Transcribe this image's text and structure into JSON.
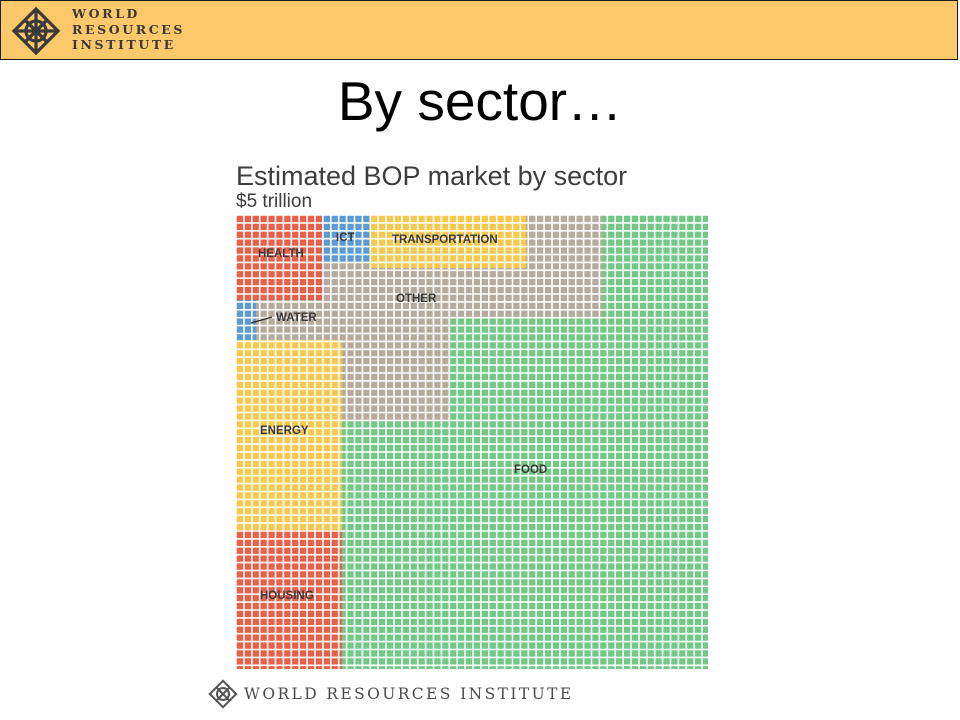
{
  "header": {
    "org_lines": [
      "WORLD",
      "RESOURCES",
      "INSTITUTE"
    ],
    "brand_color": "#fcc86a",
    "logo_icon": "wri-knot-icon"
  },
  "slide": {
    "title": "By sector…"
  },
  "footer": {
    "org_name": "WORLD RESOURCES INSTITUTE",
    "logo_icon": "wri-knot-icon"
  },
  "chart_data": {
    "type": "treemap",
    "title": "Estimated BOP market by sector",
    "subtitle": "$5 trillion",
    "sectors": [
      {
        "label": "HEALTH",
        "color": "#e8604a",
        "share": 0.04
      },
      {
        "label": "ICT",
        "color": "#5b9bd5",
        "share": 0.01
      },
      {
        "label": "TRANSPORTATION",
        "color": "#f7c84d",
        "share": 0.04
      },
      {
        "label": "OTHER",
        "color": "#b5aa9b",
        "share": 0.09
      },
      {
        "label": "WATER",
        "color": "#5b9bd5",
        "share": 0.004
      },
      {
        "label": "ENERGY",
        "color": "#f7c84d",
        "share": 0.09
      },
      {
        "label": "HOUSING",
        "color": "#e8604a",
        "share": 0.07
      },
      {
        "label": "FOOD",
        "color": "#72c985",
        "share": 0.58
      }
    ]
  }
}
